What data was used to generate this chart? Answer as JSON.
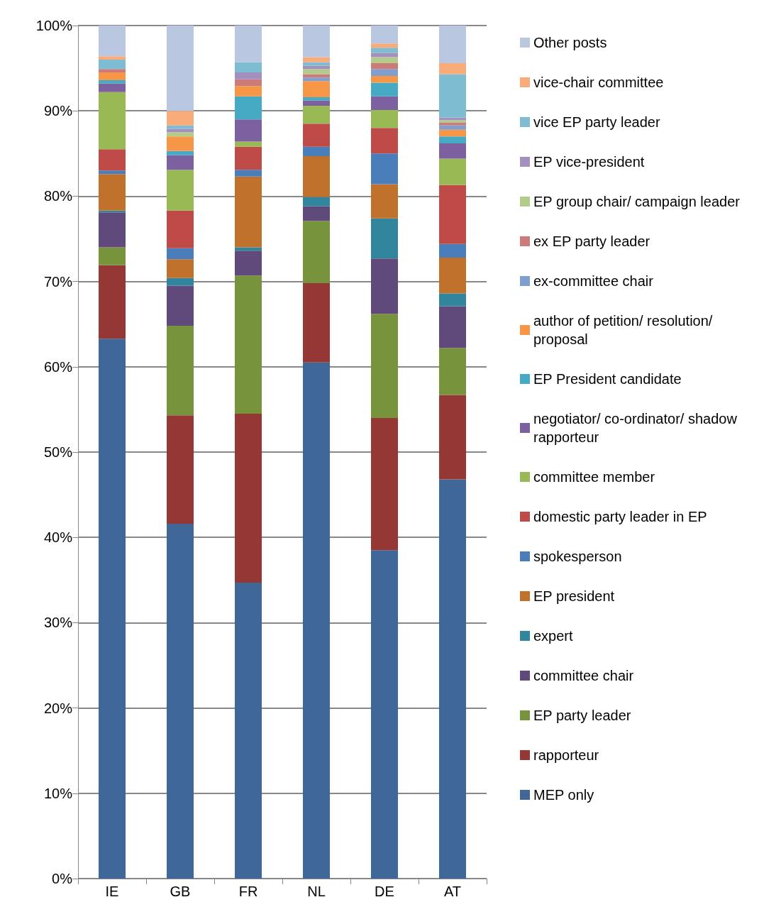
{
  "chart_data": {
    "type": "bar",
    "stacked": true,
    "categories": [
      "IE",
      "GB",
      "FR",
      "NL",
      "DE",
      "AT"
    ],
    "ylim": [
      0,
      100
    ],
    "yticks": [
      {
        "value": 0,
        "label": "0%"
      },
      {
        "value": 10,
        "label": "10%"
      },
      {
        "value": 20,
        "label": "20%"
      },
      {
        "value": 30,
        "label": "30%"
      },
      {
        "value": 40,
        "label": "40%"
      },
      {
        "value": 50,
        "label": "50%"
      },
      {
        "value": 60,
        "label": "60%"
      },
      {
        "value": 70,
        "label": "70%"
      },
      {
        "value": 80,
        "label": "80%"
      },
      {
        "value": 90,
        "label": "90%"
      },
      {
        "value": 100,
        "label": "100%"
      }
    ],
    "grid": "y",
    "legend": "right",
    "series": [
      {
        "name": "MEP only",
        "color": "#3f6797",
        "values": [
          63.3,
          41.6,
          34.7,
          60.5,
          38.5,
          46.8
        ]
      },
      {
        "name": "rapporteur",
        "color": "#953735",
        "values": [
          8.6,
          12.7,
          19.8,
          9.3,
          15.5,
          9.9
        ]
      },
      {
        "name": "EP party leader",
        "color": "#77933c",
        "values": [
          2.1,
          10.5,
          16.2,
          7.3,
          12.2,
          5.5
        ]
      },
      {
        "name": "committee chair",
        "color": "#604a7b",
        "values": [
          4.1,
          4.7,
          2.9,
          1.7,
          6.5,
          4.9
        ]
      },
      {
        "name": "expert",
        "color": "#31859c",
        "values": [
          0.2,
          0.9,
          0.4,
          1.1,
          4.7,
          1.5
        ]
      },
      {
        "name": "EP president",
        "color": "#c0712c",
        "values": [
          4.3,
          2.2,
          8.3,
          4.8,
          4.0,
          4.2
        ]
      },
      {
        "name": "spokesperson",
        "color": "#4a7ebb",
        "values": [
          0.4,
          1.3,
          0.8,
          1.1,
          3.6,
          1.6
        ]
      },
      {
        "name": "domestic party leader in EP",
        "color": "#be4b48",
        "values": [
          2.5,
          4.4,
          2.7,
          2.7,
          3.0,
          6.9
        ]
      },
      {
        "name": "committee member",
        "color": "#98b954",
        "values": [
          6.7,
          4.8,
          0.6,
          2.1,
          2.1,
          3.1
        ]
      },
      {
        "name": "negotiator/ co-ordinator/ shadow rapporteur",
        "color": "#7d60a0",
        "values": [
          1.0,
          1.7,
          2.6,
          0.6,
          1.6,
          1.8
        ]
      },
      {
        "name": "EP President candidate",
        "color": "#46aac5",
        "values": [
          0.4,
          0.5,
          2.7,
          0.4,
          1.6,
          0.8
        ]
      },
      {
        "name": "author of petition/ resolution/ proposal",
        "color": "#f79646",
        "values": [
          0.9,
          1.7,
          1.2,
          1.9,
          0.8,
          0.8
        ]
      },
      {
        "name": "ex-committee chair",
        "color": "#7f9fcf",
        "values": [
          0,
          0,
          0,
          0.4,
          0.8,
          0.5
        ]
      },
      {
        "name": "ex EP party leader",
        "color": "#cd7b7a",
        "values": [
          0.4,
          0,
          0.8,
          0.4,
          0.7,
          0.3
        ]
      },
      {
        "name": "EP group chair/ campaign leader",
        "color": "#b3cc8a",
        "values": [
          0,
          0.5,
          0,
          0.6,
          0.7,
          0.3
        ]
      },
      {
        "name": "EP vice-president",
        "color": "#a390bf",
        "values": [
          0,
          0.4,
          0.8,
          0.4,
          0.5,
          0.3
        ]
      },
      {
        "name": "vice EP party leader",
        "color": "#7ebcd1",
        "values": [
          1.1,
          0.4,
          1.2,
          0.4,
          0.6,
          5.1
        ]
      },
      {
        "name": "vice-chair committee",
        "color": "#f9ab7a",
        "values": [
          0.4,
          1.7,
          0,
          0.6,
          0.5,
          1.3
        ]
      },
      {
        "name": "Other posts",
        "color": "#b9c7e0",
        "values": [
          3.6,
          10.0,
          4.3,
          3.7,
          2.1,
          4.4
        ]
      }
    ]
  }
}
